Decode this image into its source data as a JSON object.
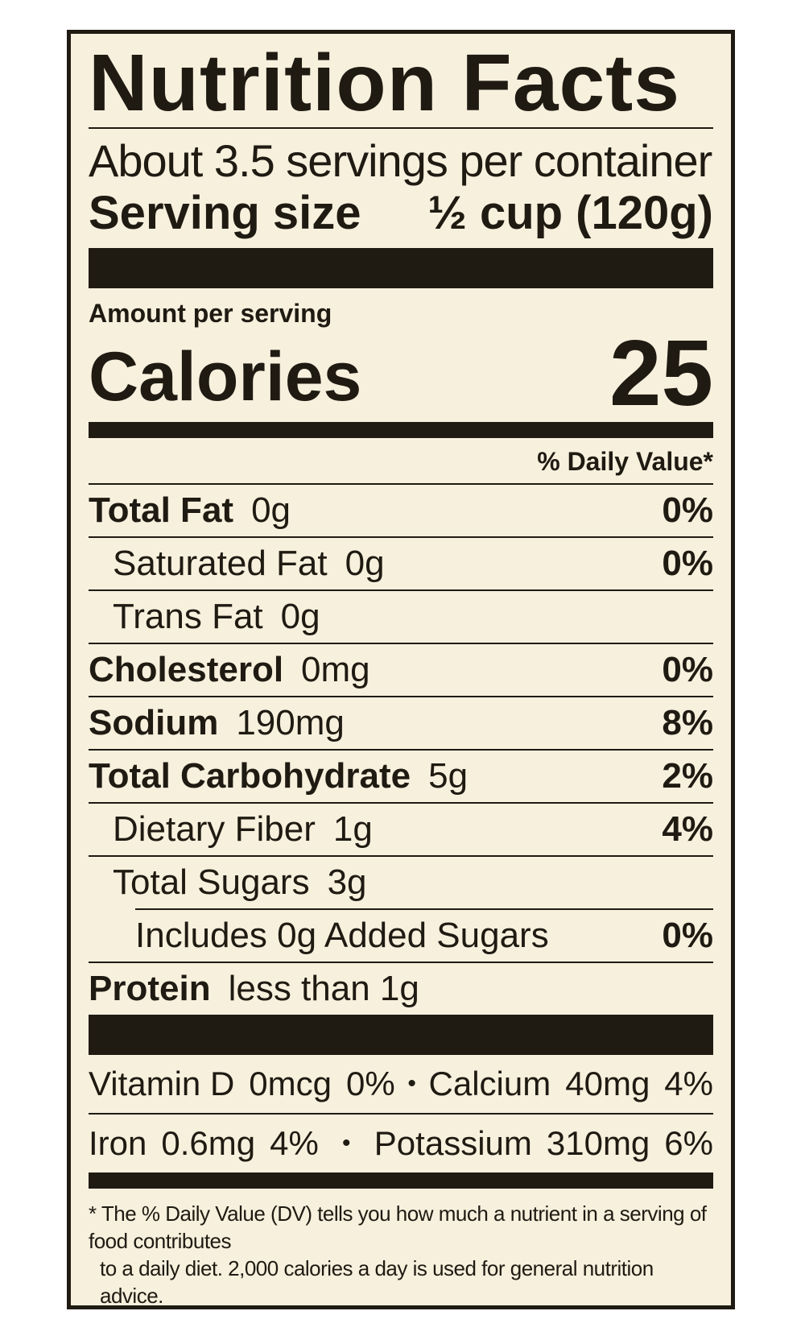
{
  "title": "Nutrition Facts",
  "servings_per_container": "About 3.5 servings per container",
  "serving_size": {
    "label": "Serving size",
    "value": "½ cup (120g)"
  },
  "amount_per_serving": "Amount per serving",
  "calories": {
    "label": "Calories",
    "value": "25"
  },
  "daily_value_header": "% Daily Value*",
  "nutrients": [
    {
      "name": "Total Fat",
      "amount": "0g",
      "dv": "0%"
    },
    {
      "name": "Saturated Fat",
      "amount": "0g",
      "dv": "0%"
    },
    {
      "name": "Trans Fat",
      "amount": "0g",
      "dv": ""
    },
    {
      "name": "Cholesterol",
      "amount": "0mg",
      "dv": "0%"
    },
    {
      "name": "Sodium",
      "amount": "190mg",
      "dv": "8%"
    },
    {
      "name": "Total Carbohydrate",
      "amount": "5g",
      "dv": "2%"
    },
    {
      "name": "Dietary Fiber",
      "amount": "1g",
      "dv": "4%"
    },
    {
      "name": "Total Sugars",
      "amount": "3g",
      "dv": ""
    },
    {
      "name": "Includes 0g Added Sugars",
      "amount": "",
      "dv": "0%"
    },
    {
      "name": "Protein",
      "amount": "less than 1g",
      "dv": ""
    }
  ],
  "vitamins": {
    "vitamin_d": {
      "name": "Vitamin D",
      "amount": "0mcg",
      "dv": "0%"
    },
    "calcium": {
      "name": "Calcium",
      "amount": "40mg",
      "dv": "4%"
    },
    "iron": {
      "name": "Iron",
      "amount": "0.6mg",
      "dv": "4%"
    },
    "potassium": {
      "name": "Potassium",
      "amount": "310mg",
      "dv": "6%"
    },
    "separator": "•"
  },
  "footnote": {
    "line1": "* The % Daily Value (DV) tells you how much a nutrient in a serving of food contributes",
    "line2": "to a daily diet. 2,000 calories a day is used for general nutrition advice."
  }
}
